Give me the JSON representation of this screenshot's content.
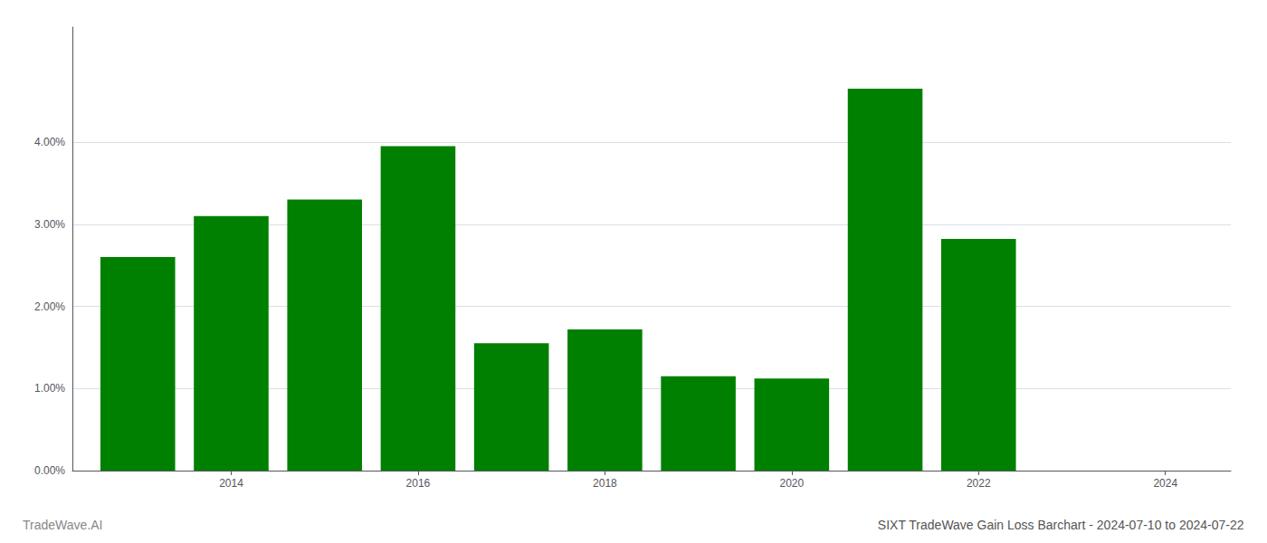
{
  "chart_data": {
    "type": "bar",
    "title": "SIXT TradeWave Gain Loss Barchart - 2024-07-10 to 2024-07-22",
    "annotations": [
      "TradeWave.AI"
    ],
    "x": [
      2013,
      2014,
      2015,
      2016,
      2017,
      2018,
      2019,
      2020,
      2021,
      2022
    ],
    "values": [
      0.026,
      0.031,
      0.033,
      0.0395,
      0.0155,
      0.0172,
      0.0115,
      0.0112,
      0.0465,
      0.0282
    ],
    "color": "#008000",
    "xlim": [
      2012.3,
      2024.7
    ],
    "xticks": [
      2014,
      2016,
      2018,
      2020,
      2022,
      2024
    ],
    "ylim": [
      0.0,
      0.054
    ],
    "yticks": [
      {
        "value": 0.0,
        "label": "0.00%"
      },
      {
        "value": 0.01,
        "label": "1.00%"
      },
      {
        "value": 0.02,
        "label": "2.00%"
      },
      {
        "value": 0.03,
        "label": "3.00%"
      },
      {
        "value": 0.04,
        "label": "4.00%"
      }
    ],
    "grid": true
  }
}
